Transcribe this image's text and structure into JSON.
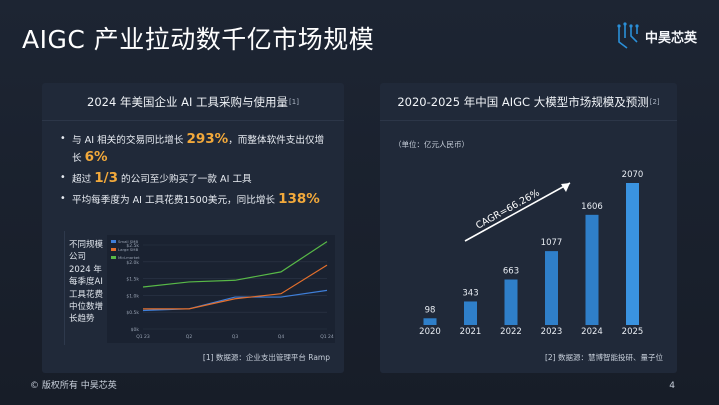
{
  "title": "AIGC 产业拉动数千亿市场规模",
  "logo": {
    "text": "中昊芯英"
  },
  "left_panel": {
    "title": "2024 年美国企业 AI 工具采购与使用量",
    "ref": "[1]",
    "bullets": [
      {
        "pre": "与 AI 相关的交易同比增长 ",
        "hl1": "293%",
        "mid": "，而整体软件支出仅增长 ",
        "hl2": "6%",
        "post": ""
      },
      {
        "pre": "超过 ",
        "hl1": "1/3",
        "mid": " 的公司至少购买了一款 AI 工具",
        "hl2": "",
        "post": ""
      },
      {
        "pre": "平均每季度为 AI 工具花费1500美元，同比增长 ",
        "hl1": "138%",
        "mid": "",
        "hl2": "",
        "post": ""
      }
    ],
    "side_text": "不同规模公司2024 年每季度AI 工具花费中位数增长趋势",
    "source": "[1] 数据源：企业支出管理平台 Ramp"
  },
  "mini_chart_data": {
    "type": "line",
    "categories": [
      "Q1 23",
      "Q2",
      "Q3",
      "Q4",
      "Q1 24"
    ],
    "ytick_labels": [
      "$2.5k",
      "$2.0k",
      "$1.5k",
      "$1.0k",
      "$0.5k",
      "$0k"
    ],
    "ylim": [
      0,
      2.5
    ],
    "series": [
      {
        "name": "Small SMB",
        "color": "#3f7fd9",
        "values": [
          0.55,
          0.6,
          0.95,
          0.95,
          1.15
        ]
      },
      {
        "name": "Large SMB",
        "color": "#e46f2c",
        "values": [
          0.6,
          0.6,
          0.9,
          1.05,
          1.9
        ]
      },
      {
        "name": "Mid-market",
        "color": "#58b947",
        "values": [
          1.25,
          1.4,
          1.45,
          1.7,
          2.6
        ]
      }
    ]
  },
  "right_panel": {
    "title": "2020-2025 年中国 AIGC 大模型市场规模及预测",
    "ref": "[2]",
    "unit": "（单位：亿元人民币）",
    "cagr": "CAGR=66.26%",
    "source": "[2] 数据源：慧博智能投研、量子位"
  },
  "chart_data": {
    "type": "bar",
    "categories": [
      "2020",
      "2021",
      "2022",
      "2023",
      "2024",
      "2025"
    ],
    "values": [
      98,
      343,
      663,
      1077,
      1606,
      2070
    ],
    "bar_color": "#2f7fc9",
    "bar_color_highlight": "#3a93e0"
  },
  "footer": {
    "copyright": "© 版权所有 中昊芯英",
    "page": "4"
  }
}
